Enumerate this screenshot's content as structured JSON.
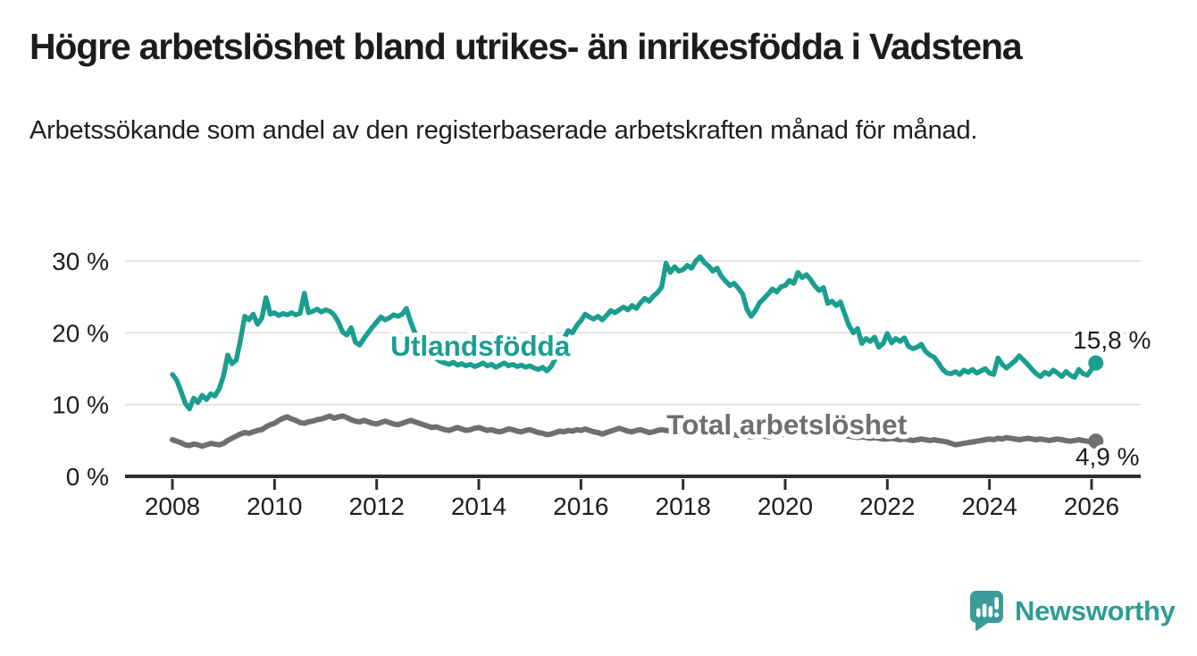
{
  "title": "Högre arbetslöshet bland utrikes- än inrikesfödda i Vadstena",
  "subtitle": "Arbetssökande som andel av den registerbaserade arbetskraften månad för månad.",
  "branding": {
    "logo_text": "Newsworthy",
    "logo_icon": "newsworthy-chart-bubble-icon",
    "brand_color": "#3b9c97"
  },
  "colors": {
    "foreign_born_line": "#1a9e90",
    "total_line": "#6f6f6f",
    "grid": "#e3e3e3",
    "axis": "#2e2e2e",
    "text": "#1d1d1d"
  },
  "chart_data": {
    "type": "line",
    "title": "Högre arbetslöshet bland utrikes- än inrikesfödda i Vadstena",
    "subtitle": "Arbetssökande som andel av den registerbaserade arbetskraften månad för månad.",
    "xlabel": "",
    "ylabel": "",
    "grid": "horizontal",
    "legend_position": "inline-labels",
    "x_monthly_start": "2008-01",
    "x_step_months": 1,
    "xlim": [
      2007.1,
      2027.0
    ],
    "ylim": [
      0,
      33
    ],
    "x_ticks": [
      {
        "value": 2008,
        "label": "2008"
      },
      {
        "value": 2010,
        "label": "2010"
      },
      {
        "value": 2012,
        "label": "2012"
      },
      {
        "value": 2014,
        "label": "2014"
      },
      {
        "value": 2016,
        "label": "2016"
      },
      {
        "value": 2018,
        "label": "2018"
      },
      {
        "value": 2020,
        "label": "2020"
      },
      {
        "value": 2022,
        "label": "2022"
      },
      {
        "value": 2024,
        "label": "2024"
      },
      {
        "value": 2026,
        "label": "2026"
      }
    ],
    "y_ticks": [
      {
        "value": 0,
        "label": "0 %"
      },
      {
        "value": 10,
        "label": "10 %"
      },
      {
        "value": 20,
        "label": "20 %"
      },
      {
        "value": 30,
        "label": "30 %"
      }
    ],
    "series": [
      {
        "name": "Utlandsfödda",
        "color": "#1a9e90",
        "end_label": "15,8 %",
        "end_value": 15.8,
        "values": [
          14.2,
          13.4,
          11.9,
          10.2,
          9.4,
          10.9,
          10.3,
          11.3,
          10.7,
          11.5,
          11.2,
          12.2,
          14.0,
          16.9,
          15.7,
          16.2,
          19.0,
          22.3,
          21.8,
          22.6,
          21.2,
          22.0,
          24.9,
          22.6,
          22.8,
          22.4,
          22.7,
          22.5,
          22.8,
          22.5,
          22.7,
          25.5,
          22.8,
          23.0,
          23.3,
          22.9,
          23.2,
          23.0,
          22.5,
          21.5,
          20.1,
          19.7,
          20.7,
          18.7,
          18.3,
          19.2,
          20.0,
          20.8,
          21.5,
          22.2,
          21.8,
          22.1,
          22.5,
          22.3,
          22.6,
          23.4,
          21.5,
          20.0,
          18.5,
          17.7,
          17.2,
          16.8,
          16.4,
          16.0,
          15.8,
          15.6,
          15.9,
          15.5,
          15.7,
          15.4,
          15.6,
          15.3,
          15.5,
          15.8,
          15.4,
          15.6,
          15.2,
          15.5,
          15.8,
          15.4,
          15.6,
          15.3,
          15.5,
          15.2,
          15.4,
          15.1,
          14.9,
          15.2,
          14.7,
          15.3,
          16.4,
          17.8,
          19.2,
          20.3,
          20.0,
          21.0,
          21.7,
          22.6,
          22.2,
          21.9,
          22.3,
          21.8,
          22.4,
          23.1,
          22.8,
          23.2,
          23.6,
          23.2,
          23.8,
          23.4,
          24.2,
          24.8,
          24.4,
          25.1,
          25.6,
          26.4,
          29.7,
          28.4,
          29.2,
          28.6,
          28.8,
          29.4,
          29.0,
          30.0,
          30.6,
          29.8,
          29.3,
          28.6,
          29.0,
          27.9,
          27.2,
          26.6,
          26.9,
          26.2,
          25.4,
          23.3,
          22.3,
          23.1,
          24.2,
          24.8,
          25.4,
          26.1,
          25.7,
          26.4,
          26.6,
          27.3,
          26.9,
          28.4,
          27.7,
          28.1,
          27.4,
          26.5,
          25.9,
          26.3,
          24.1,
          24.4,
          23.8,
          24.3,
          22.6,
          21.0,
          20.0,
          20.6,
          18.5,
          19.2,
          18.8,
          19.4,
          18.0,
          18.5,
          19.9,
          18.6,
          19.2,
          18.8,
          19.3,
          18.1,
          17.8,
          18.0,
          18.4,
          17.4,
          16.9,
          16.6,
          15.8,
          14.9,
          14.4,
          14.3,
          14.6,
          14.2,
          14.8,
          14.5,
          14.9,
          14.4,
          14.7,
          15.0,
          14.4,
          14.2,
          16.5,
          15.6,
          15.1,
          15.6,
          16.1,
          16.8,
          16.2,
          15.6,
          14.9,
          14.3,
          13.9,
          14.5,
          14.2,
          14.8,
          14.4,
          13.9,
          14.6,
          14.1,
          13.8,
          14.9,
          14.3,
          14.1,
          14.9,
          15.8
        ]
      },
      {
        "name": "Total arbetslöshet",
        "color": "#6f6f6f",
        "end_label": "4,9 %",
        "end_value": 4.9,
        "values": [
          5.1,
          4.9,
          4.7,
          4.4,
          4.3,
          4.5,
          4.4,
          4.2,
          4.4,
          4.6,
          4.5,
          4.4,
          4.6,
          5.0,
          5.3,
          5.6,
          5.9,
          6.1,
          6.0,
          6.2,
          6.4,
          6.5,
          6.9,
          7.2,
          7.4,
          7.8,
          8.1,
          8.3,
          8.0,
          7.8,
          7.5,
          7.4,
          7.6,
          7.7,
          7.9,
          8.0,
          8.2,
          8.4,
          8.1,
          8.3,
          8.4,
          8.2,
          7.9,
          7.7,
          7.6,
          7.8,
          7.6,
          7.4,
          7.3,
          7.5,
          7.7,
          7.5,
          7.3,
          7.2,
          7.4,
          7.6,
          7.8,
          7.6,
          7.4,
          7.2,
          7.0,
          6.8,
          6.9,
          6.7,
          6.5,
          6.4,
          6.6,
          6.8,
          6.6,
          6.4,
          6.5,
          6.7,
          6.8,
          6.6,
          6.4,
          6.5,
          6.3,
          6.2,
          6.4,
          6.6,
          6.5,
          6.3,
          6.2,
          6.4,
          6.5,
          6.3,
          6.1,
          6.0,
          5.8,
          5.9,
          6.1,
          6.3,
          6.2,
          6.4,
          6.3,
          6.5,
          6.4,
          6.6,
          6.4,
          6.2,
          6.1,
          5.9,
          6.1,
          6.3,
          6.5,
          6.7,
          6.5,
          6.3,
          6.2,
          6.4,
          6.5,
          6.3,
          6.1,
          6.2,
          6.4,
          6.5,
          6.4,
          6.3,
          6.4,
          6.5,
          6.4,
          6.3,
          6.2,
          6.1,
          6.0,
          5.9,
          6.0,
          6.1,
          6.0,
          5.9,
          5.8,
          5.9,
          5.8,
          5.7,
          5.8,
          5.6,
          5.5,
          5.6,
          5.7,
          5.6,
          5.5,
          5.6,
          5.7,
          5.8,
          5.9,
          6.0,
          6.2,
          6.4,
          6.3,
          6.2,
          6.1,
          6.0,
          5.9,
          5.8,
          5.7,
          5.8,
          5.7,
          5.8,
          5.7,
          5.6,
          5.5,
          5.4,
          5.5,
          5.4,
          5.3,
          5.4,
          5.3,
          5.2,
          5.2,
          5.3,
          5.2,
          5.1,
          5.2,
          5.1,
          5.0,
          5.1,
          5.2,
          5.1,
          5.0,
          5.1,
          5.0,
          4.9,
          4.8,
          4.6,
          4.4,
          4.5,
          4.6,
          4.7,
          4.8,
          4.9,
          5.0,
          5.1,
          5.2,
          5.1,
          5.3,
          5.2,
          5.4,
          5.3,
          5.2,
          5.1,
          5.2,
          5.3,
          5.2,
          5.1,
          5.2,
          5.1,
          5.0,
          5.1,
          5.2,
          5.1,
          5.0,
          4.9,
          5.0,
          5.1,
          5.0,
          4.9,
          4.8,
          4.9
        ]
      }
    ],
    "inline_labels": [
      {
        "text": "Utlandsfödda",
        "x": 2014.03,
        "y": 18.2,
        "color": "#1a9e90"
      },
      {
        "text": "Total arbetslöshet",
        "x": 2020.03,
        "y": 7.2,
        "color": "#6f6f6f"
      }
    ]
  }
}
